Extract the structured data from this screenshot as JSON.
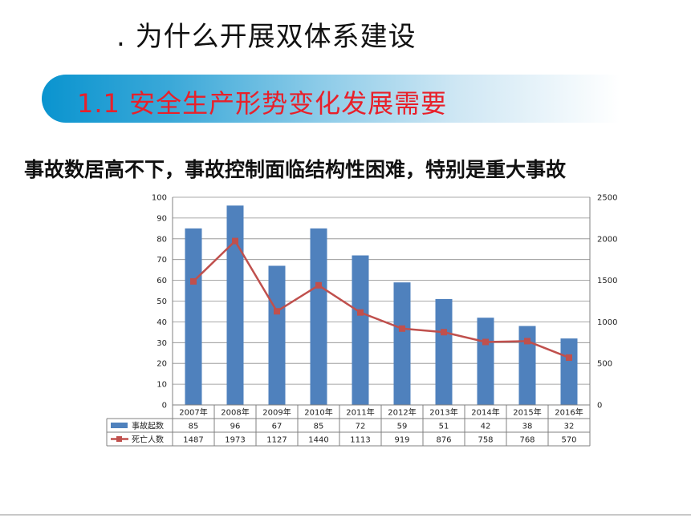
{
  "slide": {
    "title": ". 为什么开展双体系建设",
    "banner": "1.1  安全生产形势变化发展需要",
    "subtitle": "事故数居高不下，事故控制面临结构性困难，特别是重大事故"
  },
  "chart_data": {
    "type": "bar",
    "categories": [
      "2007年",
      "2008年",
      "2009年",
      "2010年",
      "2011年",
      "2012年",
      "2013年",
      "2014年",
      "2015年",
      "2016年"
    ],
    "series": [
      {
        "name": "事故起数",
        "kind": "bar",
        "axis": "left",
        "color": "#4f81bd",
        "values": [
          85,
          96,
          67,
          85,
          72,
          59,
          51,
          42,
          38,
          32
        ]
      },
      {
        "name": "死亡人数",
        "kind": "line",
        "axis": "right",
        "color": "#c0504d",
        "values": [
          1487,
          1973,
          1127,
          1440,
          1113,
          919,
          876,
          758,
          768,
          570
        ]
      }
    ],
    "y_left": {
      "min": 0,
      "max": 100,
      "ticks": [
        "0",
        "10",
        "20",
        "30",
        "40",
        "50",
        "60",
        "70",
        "80",
        "90",
        "100"
      ]
    },
    "y_right": {
      "min": 0,
      "max": 2500,
      "ticks": [
        "0",
        "500",
        "1000",
        "1500",
        "2000",
        "2500"
      ]
    },
    "grid": true,
    "legend": "data-table"
  }
}
